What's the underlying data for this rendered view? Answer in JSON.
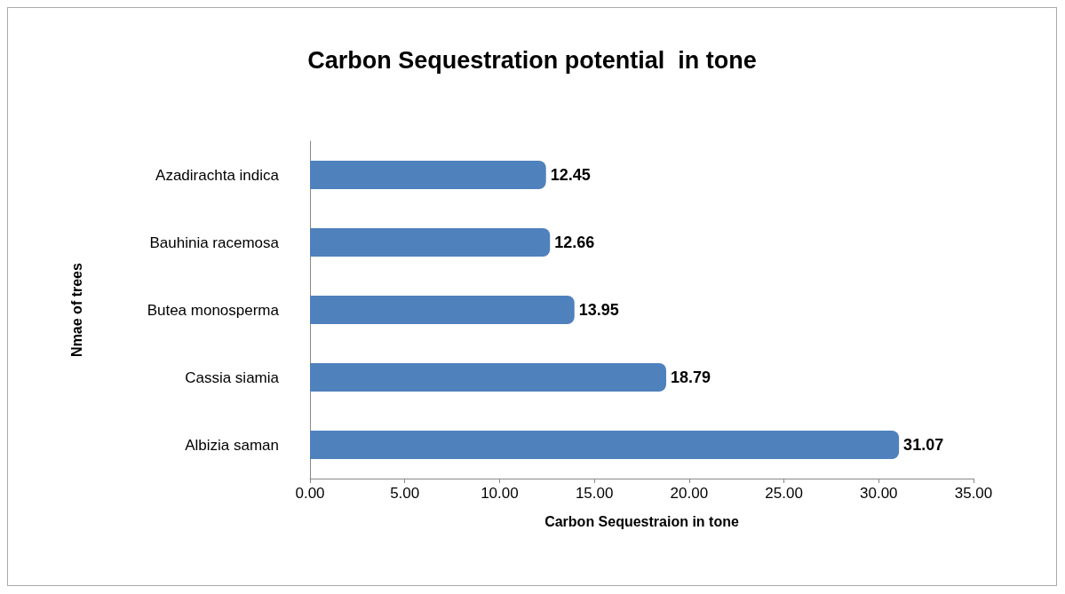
{
  "chart_data": {
    "type": "bar",
    "orientation": "horizontal",
    "title": "Carbon Sequestration potential  in tone",
    "xlabel": "Carbon Sequestraion in tone",
    "ylabel": "Nmae of trees",
    "categories": [
      "Azadirachta indica",
      "Bauhinia racemosa",
      "Butea monosperma",
      "Cassia siamia",
      "Albizia saman"
    ],
    "values": [
      12.45,
      12.66,
      13.95,
      18.79,
      31.07
    ],
    "color": "#4f81bd",
    "xlim": [
      0,
      35
    ],
    "xticks": [
      {
        "value": 0,
        "label": "0.00"
      },
      {
        "value": 5,
        "label": "5.00"
      },
      {
        "value": 10,
        "label": "10.00"
      },
      {
        "value": 15,
        "label": "15.00"
      },
      {
        "value": 20,
        "label": "20.00"
      },
      {
        "value": 25,
        "label": "25.00"
      },
      {
        "value": 30,
        "label": "30.00"
      },
      {
        "value": 35,
        "label": "35.00"
      }
    ],
    "data_labels": true,
    "grid": false
  }
}
